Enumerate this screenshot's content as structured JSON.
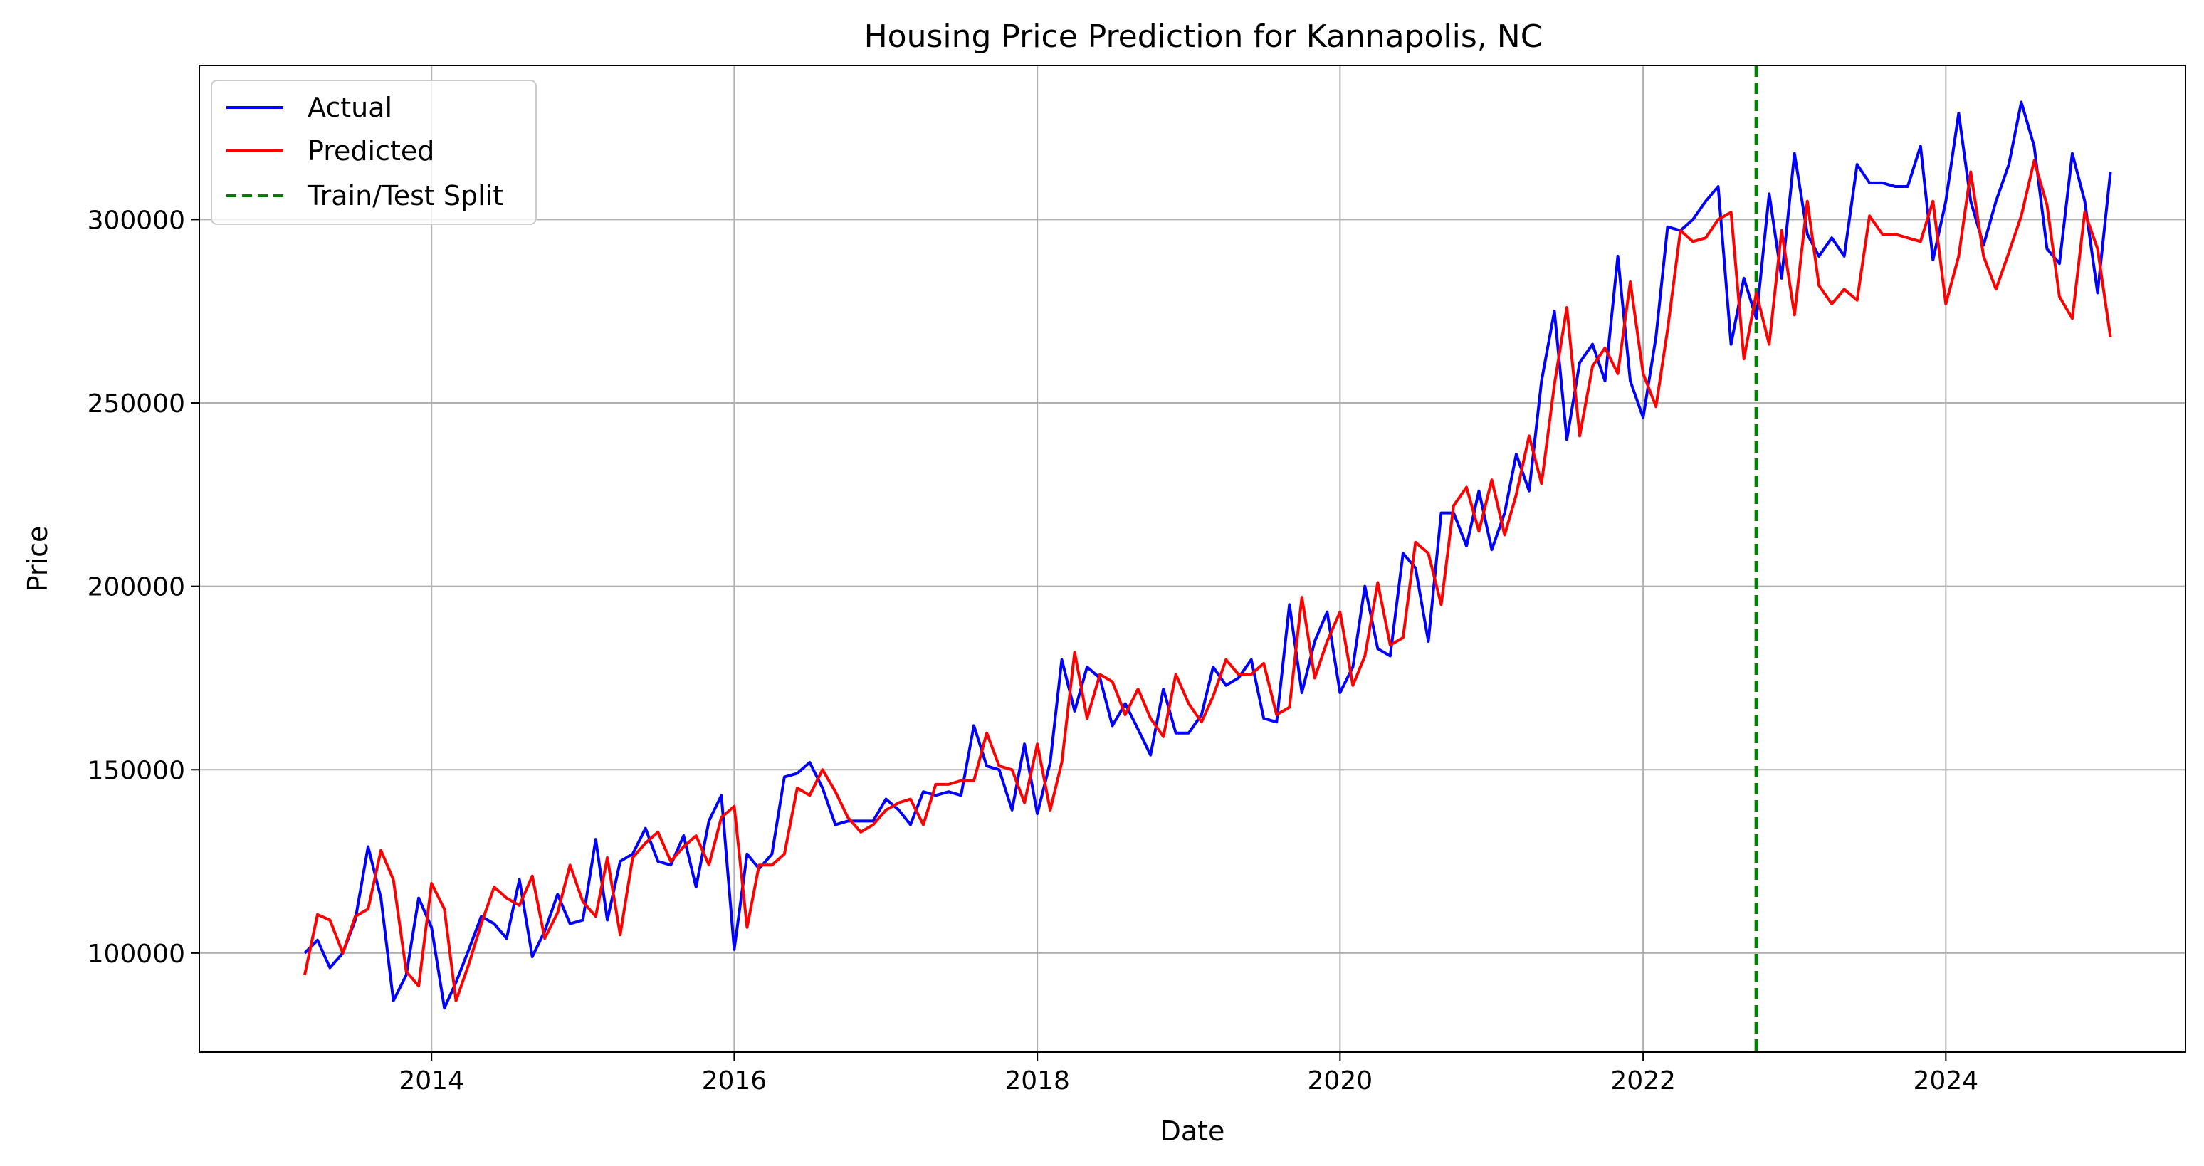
{
  "chart_data": {
    "type": "line",
    "title": "Housing Price Prediction for Kannapolis, NC",
    "xlabel": "Date",
    "ylabel": "Price",
    "xlim": [
      "2012-06-20",
      "2025-08-01"
    ],
    "ylim": [
      73000,
      342000
    ],
    "xticks": [
      {
        "label": "2014",
        "date": "2014-01-01"
      },
      {
        "label": "2016",
        "date": "2016-01-01"
      },
      {
        "label": "2018",
        "date": "2018-01-01"
      },
      {
        "label": "2020",
        "date": "2020-01-01"
      },
      {
        "label": "2022",
        "date": "2022-01-01"
      },
      {
        "label": "2024",
        "date": "2024-01-01"
      }
    ],
    "yticks": [
      {
        "label": "100000",
        "value": 100000
      },
      {
        "label": "150000",
        "value": 150000
      },
      {
        "label": "200000",
        "value": 200000
      },
      {
        "label": "250000",
        "value": 250000
      },
      {
        "label": "300000",
        "value": 300000
      }
    ],
    "grid": true,
    "legend_position": "top-left",
    "start_date": "2013-03",
    "frequency": "monthly",
    "split_date": "2022-10",
    "colors": {
      "actual": "#0000ff",
      "predicted": "#ff0000",
      "split": "#008000",
      "grid": "#b0b0b0"
    },
    "series": [
      {
        "name": "Actual",
        "values": [
          100000,
          103500,
          96000,
          100000,
          109000,
          129000,
          115000,
          87000,
          94000,
          115000,
          107000,
          85000,
          92000,
          101000,
          110000,
          108000,
          104000,
          120000,
          99000,
          106000,
          116000,
          108000,
          109000,
          131000,
          109000,
          125000,
          127000,
          134000,
          125000,
          124000,
          132000,
          118000,
          136000,
          143000,
          101000,
          127000,
          123000,
          127000,
          148000,
          149000,
          152000,
          145000,
          135000,
          136000,
          136000,
          136000,
          142000,
          139000,
          135000,
          144000,
          143000,
          144000,
          143000,
          162000,
          151000,
          150000,
          139000,
          157000,
          138000,
          152000,
          180000,
          166000,
          178000,
          175000,
          162000,
          168000,
          161000,
          154000,
          172000,
          160000,
          160000,
          165000,
          178000,
          173000,
          175000,
          180000,
          164000,
          163000,
          195000,
          171000,
          185000,
          193000,
          171000,
          178000,
          200000,
          183000,
          181000,
          209000,
          205000,
          185000,
          220000,
          220000,
          211000,
          226000,
          210000,
          220000,
          236000,
          226000,
          256000,
          275000,
          240000,
          261000,
          266000,
          256000,
          290000,
          256000,
          246000,
          268000,
          298000,
          297000,
          300000,
          305000,
          309000,
          266000,
          284000,
          273000,
          307000,
          284000,
          318000,
          296000,
          290000,
          295000,
          290000,
          315000,
          310000,
          310000,
          309000,
          309000,
          320000,
          289000,
          305000,
          329000,
          305000,
          293000,
          305000,
          315000,
          332000,
          320000,
          292000,
          288000,
          318000,
          305000,
          280000,
          313000
        ]
      },
      {
        "name": "Predicted",
        "values": [
          94000,
          110500,
          109000,
          100000,
          110000,
          112000,
          128000,
          120000,
          95000,
          91000,
          119000,
          112000,
          87000,
          97000,
          108000,
          118000,
          115000,
          113000,
          121000,
          104000,
          111000,
          124000,
          114000,
          110000,
          126000,
          105000,
          126000,
          130000,
          133000,
          125000,
          129000,
          132000,
          124000,
          137000,
          140000,
          107000,
          124000,
          124000,
          127000,
          145000,
          143000,
          150000,
          144000,
          137000,
          133000,
          135000,
          139000,
          141000,
          142000,
          135000,
          146000,
          146000,
          147000,
          147000,
          160000,
          151000,
          150000,
          141000,
          157000,
          139000,
          152000,
          182000,
          164000,
          176000,
          174000,
          165000,
          172000,
          164000,
          159000,
          176000,
          168000,
          163000,
          170000,
          180000,
          176000,
          176000,
          179000,
          165000,
          167000,
          197000,
          175000,
          185000,
          193000,
          173000,
          181000,
          201000,
          184000,
          186000,
          212000,
          209000,
          195000,
          222000,
          227000,
          215000,
          229000,
          214000,
          225000,
          241000,
          228000,
          255000,
          276000,
          241000,
          260000,
          265000,
          258000,
          283000,
          258000,
          249000,
          270000,
          297000,
          294000,
          295000,
          300000,
          302000,
          262000,
          280000,
          266000,
          297000,
          274000,
          305000,
          282000,
          277000,
          281000,
          278000,
          301000,
          296000,
          296000,
          295000,
          294000,
          305000,
          277000,
          290000,
          313000,
          290000,
          281000,
          291000,
          301000,
          316000,
          304000,
          279000,
          273000,
          302000,
          292000,
          268000
        ]
      }
    ]
  },
  "legend": {
    "items": [
      {
        "label": "Actual",
        "style": "solid",
        "color": "#0000ff"
      },
      {
        "label": "Predicted",
        "style": "solid",
        "color": "#ff0000"
      },
      {
        "label": "Train/Test Split",
        "style": "dashed",
        "color": "#008000"
      }
    ]
  }
}
